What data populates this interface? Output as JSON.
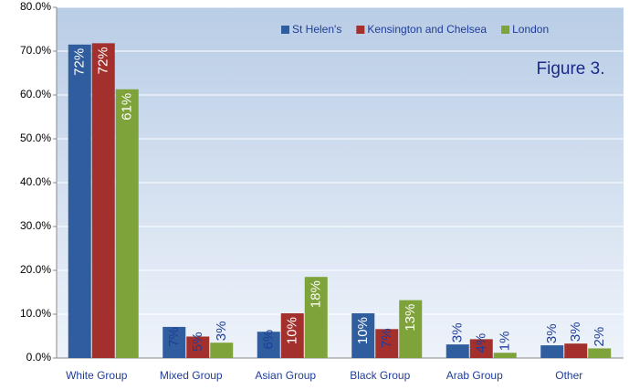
{
  "chart_data": {
    "type": "bar",
    "annotation": "Figure 3.",
    "categories": [
      "White Group",
      "Mixed Group",
      "Asian Group",
      "Black Group",
      "Arab Group",
      "Other"
    ],
    "series": [
      {
        "name": "St Helen's",
        "color": "#2f5d9e",
        "values": [
          71.5,
          7.1,
          6.0,
          10.2,
          3.1,
          2.9
        ],
        "value_labels": [
          "72%",
          "7%",
          "6%",
          "10%",
          "3%",
          "3%"
        ]
      },
      {
        "name": "Kensington and Chelsea",
        "color": "#a3302d",
        "values": [
          71.8,
          4.9,
          10.2,
          6.6,
          4.3,
          3.3
        ],
        "value_labels": [
          "72%",
          "5%",
          "10%",
          "7%",
          "4%",
          "3%"
        ]
      },
      {
        "name": "London",
        "color": "#7ea33a",
        "values": [
          61.3,
          3.5,
          18.5,
          13.2,
          1.2,
          2.2
        ],
        "value_labels": [
          "61%",
          "3%",
          "18%",
          "13%",
          "1%",
          "2%"
        ]
      }
    ],
    "ylim": [
      0,
      80
    ],
    "yticks": [
      {
        "value": 0,
        "label": "0.0%"
      },
      {
        "value": 10,
        "label": "10.0%"
      },
      {
        "value": 20,
        "label": "20.0%"
      },
      {
        "value": 30,
        "label": "30.0%"
      },
      {
        "value": 40,
        "label": "40.0%"
      },
      {
        "value": 50,
        "label": "50.0%"
      },
      {
        "value": 60,
        "label": "60.0%"
      },
      {
        "value": 70,
        "label": "70.0%"
      },
      {
        "value": 80,
        "label": "80.0%"
      }
    ],
    "grid": true,
    "legend": "top-right"
  }
}
